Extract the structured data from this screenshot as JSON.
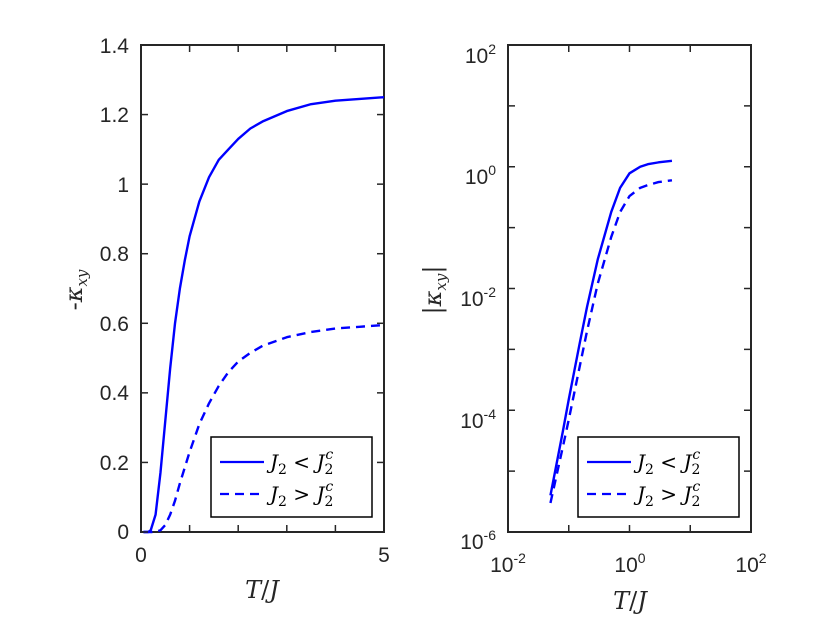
{
  "colors": {
    "series": "#0000ff",
    "axis": "#262626",
    "background": "#ffffff"
  },
  "chart_data": [
    {
      "type": "line",
      "xlabel": "T/J",
      "ylabel": "-κxy",
      "xlim": [
        0,
        5
      ],
      "ylim": [
        0,
        1.4
      ],
      "xscale": "linear",
      "yscale": "linear",
      "x_ticks": [
        "0",
        "5"
      ],
      "y_ticks": [
        "0",
        "0.2",
        "0.4",
        "0.6",
        "0.8",
        "1",
        "1.2",
        "1.4"
      ],
      "grid": false,
      "legend_position": "bottom-right",
      "series": [
        {
          "name": "J2 < J2c",
          "style": "solid",
          "x": [
            0.05,
            0.15,
            0.2,
            0.3,
            0.4,
            0.5,
            0.6,
            0.7,
            0.8,
            0.9,
            1.0,
            1.2,
            1.4,
            1.6,
            1.8,
            2.0,
            2.25,
            2.5,
            3.0,
            3.5,
            4.0,
            4.5,
            5.0
          ],
          "y": [
            0.0,
            0.0,
            0.005,
            0.05,
            0.17,
            0.32,
            0.47,
            0.6,
            0.7,
            0.78,
            0.85,
            0.95,
            1.02,
            1.07,
            1.1,
            1.13,
            1.16,
            1.18,
            1.21,
            1.23,
            1.24,
            1.245,
            1.25
          ]
        },
        {
          "name": "J2 > J2c",
          "style": "dashed",
          "x": [
            0.05,
            0.3,
            0.4,
            0.5,
            0.6,
            0.7,
            0.8,
            1.0,
            1.2,
            1.4,
            1.6,
            1.8,
            2.0,
            2.25,
            2.5,
            3.0,
            3.5,
            4.0,
            4.5,
            5.0
          ],
          "y": [
            0.0,
            0.0,
            0.005,
            0.02,
            0.05,
            0.09,
            0.14,
            0.23,
            0.31,
            0.37,
            0.42,
            0.46,
            0.49,
            0.515,
            0.535,
            0.56,
            0.575,
            0.585,
            0.59,
            0.595
          ]
        }
      ],
      "legend": [
        {
          "label": "J2 < J2c",
          "style": "solid"
        },
        {
          "label": "J2 > J2c",
          "style": "dashed"
        }
      ]
    },
    {
      "type": "line",
      "xlabel": "T/J",
      "ylabel": "|κxy|",
      "xlim": [
        0.01,
        100
      ],
      "ylim": [
        1e-06,
        100
      ],
      "xscale": "log",
      "yscale": "log",
      "x_ticks": [
        "10-2",
        "100",
        "102"
      ],
      "y_ticks": [
        "10-6",
        "10-4",
        "10-2",
        "100",
        "102"
      ],
      "grid": false,
      "legend_position": "bottom-right",
      "series": [
        {
          "name": "J2 < J2c",
          "style": "solid",
          "x": [
            0.05,
            0.08,
            0.1,
            0.15,
            0.2,
            0.3,
            0.5,
            0.7,
            1.0,
            1.5,
            2.0,
            3.0,
            5.0
          ],
          "y": [
            4e-06,
            4.5e-05,
            0.00015,
            0.0012,
            0.005,
            0.03,
            0.18,
            0.45,
            0.78,
            1.0,
            1.1,
            1.18,
            1.25
          ]
        },
        {
          "name": "J2 > J2c",
          "style": "dashed",
          "x": [
            0.05,
            0.08,
            0.1,
            0.15,
            0.2,
            0.3,
            0.5,
            0.7,
            1.0,
            1.5,
            2.0,
            3.0,
            5.0
          ],
          "y": [
            3e-06,
            2.5e-05,
            7e-05,
            0.0005,
            0.002,
            0.012,
            0.07,
            0.18,
            0.33,
            0.45,
            0.5,
            0.56,
            0.6
          ]
        }
      ],
      "legend": [
        {
          "label": "J2 < J2c",
          "style": "solid"
        },
        {
          "label": "J2 > J2c",
          "style": "dashed"
        }
      ]
    }
  ]
}
